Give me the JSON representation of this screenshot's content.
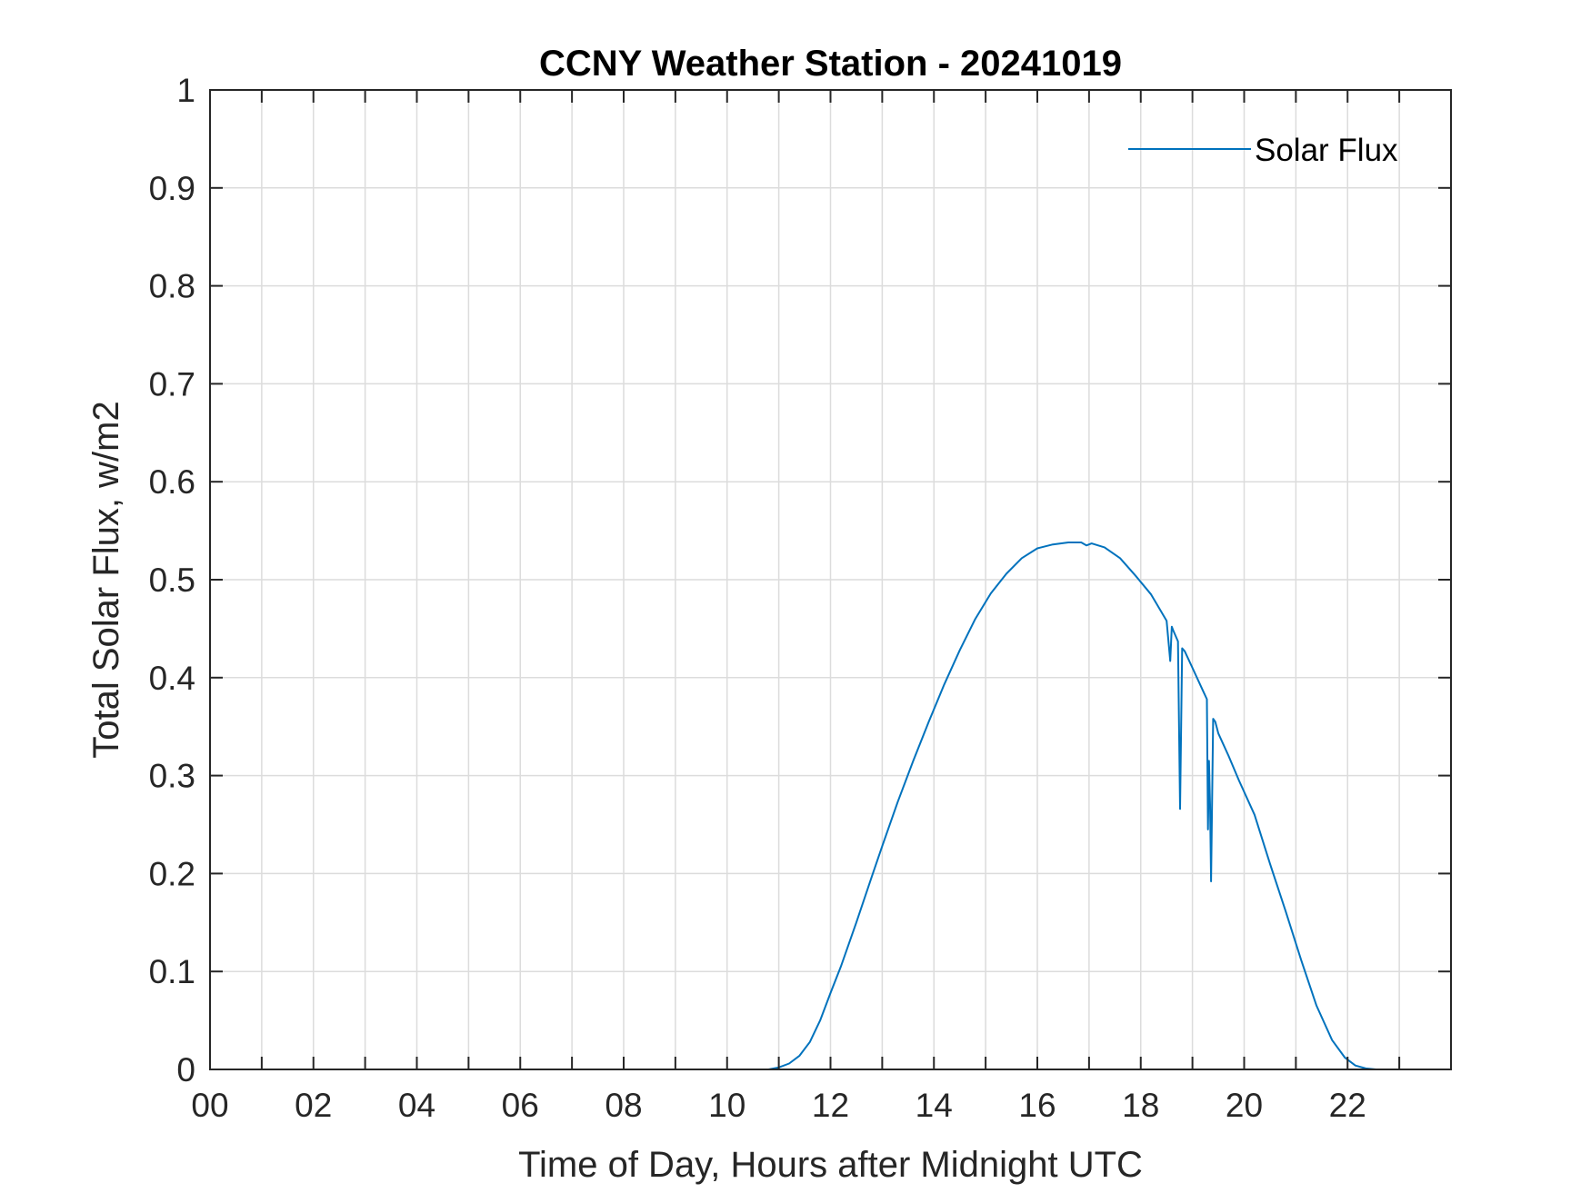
{
  "chart_data": {
    "type": "line",
    "title": "CCNY Weather Station - 20241019",
    "xlabel": "Time of Day, Hours after Midnight UTC",
    "ylabel": "Total Solar Flux, w/m2",
    "xlim": [
      0,
      24
    ],
    "ylim": [
      0,
      1
    ],
    "grid": true,
    "legend_location": "top-right",
    "x_ticks": [
      0,
      2,
      4,
      6,
      8,
      10,
      12,
      14,
      16,
      18,
      20,
      22
    ],
    "x_tick_labels": [
      "00",
      "02",
      "04",
      "06",
      "08",
      "10",
      "12",
      "14",
      "16",
      "18",
      "20",
      "22"
    ],
    "y_ticks": [
      0,
      0.1,
      0.2,
      0.3,
      0.4,
      0.5,
      0.6,
      0.7,
      0.8,
      0.9,
      1
    ],
    "y_tick_labels": [
      "0",
      "0.1",
      "0.2",
      "0.3",
      "0.4",
      "0.5",
      "0.6",
      "0.7",
      "0.8",
      "0.9",
      "1"
    ],
    "series": [
      {
        "name": "Solar Flux",
        "color": "#0072bd",
        "x": [
          0,
          10.8,
          11.0,
          11.2,
          11.4,
          11.6,
          11.8,
          12.0,
          12.2,
          12.5,
          12.8,
          13.0,
          13.3,
          13.6,
          13.9,
          14.2,
          14.5,
          14.8,
          15.1,
          15.4,
          15.7,
          16.0,
          16.3,
          16.6,
          16.85,
          16.95,
          17.05,
          17.3,
          17.6,
          17.9,
          18.2,
          18.5,
          18.57,
          18.6,
          18.63,
          18.72,
          18.76,
          18.8,
          18.85,
          19.0,
          19.2,
          19.28,
          19.3,
          19.32,
          19.34,
          19.36,
          19.4,
          19.44,
          19.5,
          19.7,
          19.9,
          20.2,
          20.5,
          20.8,
          21.1,
          21.4,
          21.7,
          21.95,
          22.15,
          22.35,
          22.55,
          24.0
        ],
        "y": [
          0,
          0,
          0.002,
          0.006,
          0.014,
          0.028,
          0.05,
          0.078,
          0.105,
          0.15,
          0.197,
          0.228,
          0.273,
          0.315,
          0.355,
          0.393,
          0.428,
          0.46,
          0.486,
          0.506,
          0.522,
          0.532,
          0.536,
          0.538,
          0.538,
          0.535,
          0.537,
          0.533,
          0.522,
          0.504,
          0.485,
          0.458,
          0.417,
          0.452,
          0.448,
          0.437,
          0.266,
          0.43,
          0.427,
          0.41,
          0.387,
          0.378,
          0.245,
          0.315,
          0.27,
          0.192,
          0.358,
          0.355,
          0.343,
          0.32,
          0.295,
          0.26,
          0.21,
          0.162,
          0.112,
          0.065,
          0.03,
          0.012,
          0.004,
          0.001,
          0,
          0
        ]
      }
    ]
  }
}
